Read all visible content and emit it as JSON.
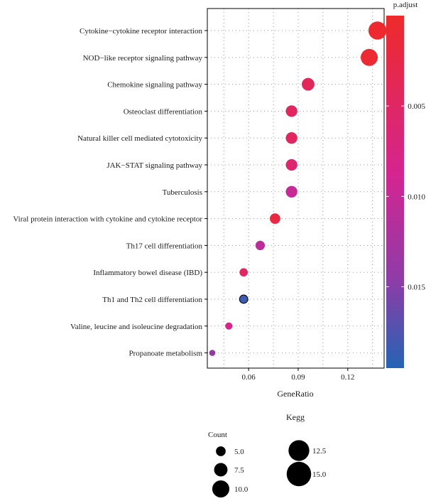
{
  "chart_data": {
    "type": "scatter",
    "title": "",
    "subtitle": "",
    "xlabel": "GeneRatio",
    "ylabel": "",
    "caption": "Kegg",
    "xlim": [
      0.035,
      0.142
    ],
    "xticks": [
      0.06,
      0.09,
      0.12
    ],
    "xtick_labels": [
      "0.06",
      "0.09",
      "0.12"
    ],
    "grid": true,
    "grid_style": "dotted",
    "categories": [
      "Cytokine−cytokine receptor interaction",
      "NOD−like receptor signaling pathway",
      "Chemokine signaling pathway",
      "Osteoclast differentiation",
      "Natural killer cell mediated cytotoxicity",
      "JAK−STAT signaling pathway",
      "Tuberculosis",
      "Viral protein interaction with cytokine and cytokine receptor",
      "Th17 cell differentiation",
      "Inflammatory bowel disease (IBD)",
      "Th1 and Th2 cell differentiation",
      "Valine, leucine and isoleucine degradation",
      "Propanoate metabolism"
    ],
    "points": [
      {
        "term": "Cytokine−cytokine receptor interaction",
        "gene_ratio": 0.138,
        "count": 15,
        "p_adjust": 0.0004
      },
      {
        "term": "NOD−like receptor signaling pathway",
        "gene_ratio": 0.133,
        "count": 14,
        "p_adjust": 0.0008
      },
      {
        "term": "Chemokine signaling pathway",
        "gene_ratio": 0.096,
        "count": 10,
        "p_adjust": 0.004
      },
      {
        "term": "Osteoclast differentiation",
        "gene_ratio": 0.086,
        "count": 9,
        "p_adjust": 0.0047
      },
      {
        "term": "Natural killer cell mediated cytotoxicity",
        "gene_ratio": 0.086,
        "count": 9,
        "p_adjust": 0.0047
      },
      {
        "term": "JAK−STAT signaling pathway",
        "gene_ratio": 0.086,
        "count": 9,
        "p_adjust": 0.006
      },
      {
        "term": "Tuberculosis",
        "gene_ratio": 0.086,
        "count": 9,
        "p_adjust": 0.01
      },
      {
        "term": "Viral protein interaction with cytokine and cytokine receptor",
        "gene_ratio": 0.076,
        "count": 8,
        "p_adjust": 0.002
      },
      {
        "term": "Th17 cell differentiation",
        "gene_ratio": 0.067,
        "count": 7,
        "p_adjust": 0.011
      },
      {
        "term": "Inflammatory bowel disease (IBD)",
        "gene_ratio": 0.057,
        "count": 6,
        "p_adjust": 0.005
      },
      {
        "term": "Th1 and Th2 cell differentiation",
        "gene_ratio": 0.057,
        "count": 6,
        "p_adjust": 0.0185
      },
      {
        "term": "Valine, leucine and isoleucine degradation",
        "gene_ratio": 0.048,
        "count": 5,
        "p_adjust": 0.0085
      },
      {
        "term": "Propanoate metabolism",
        "gene_ratio": 0.038,
        "count": 4,
        "p_adjust": 0.014
      }
    ],
    "color_legend": {
      "title": "p.adjust",
      "min": 0.0,
      "max": 0.0195,
      "ticks": [
        0.005,
        0.01,
        0.015
      ],
      "tick_labels": [
        "0.005",
        "0.010",
        "0.015"
      ],
      "low_color": "#EE2A2A",
      "mid_color": "#D42590",
      "high_color": "#2464B4"
    },
    "size_legend": {
      "title": "Count",
      "values": [
        5.0,
        7.5,
        10.0,
        12.5,
        15.0
      ],
      "labels": [
        "5.0",
        "7.5",
        "10.0",
        "12.5",
        "15.0"
      ]
    }
  }
}
